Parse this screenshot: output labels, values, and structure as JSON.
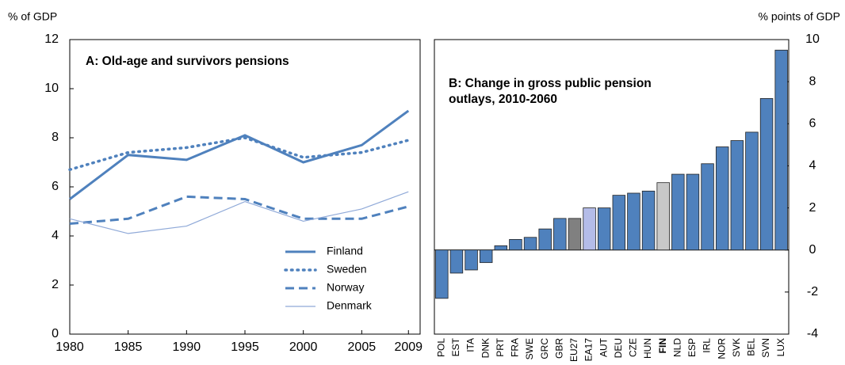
{
  "chart_data": [
    {
      "type": "line",
      "title": "A: Old-age and survivors pensions",
      "y_label": "% of GDP",
      "x": [
        1980,
        1985,
        1990,
        1995,
        2000,
        2005,
        2009
      ],
      "xlim": [
        1980,
        2010
      ],
      "xticks": [
        1980,
        1985,
        1990,
        1995,
        2000,
        2005,
        2009
      ],
      "ylim": [
        0,
        12
      ],
      "yticks": [
        0,
        2,
        4,
        6,
        8,
        10,
        12
      ],
      "series": [
        {
          "name": "Finland",
          "color": "#4f81bd",
          "style": "solid",
          "width": 3,
          "values": [
            5.5,
            7.3,
            7.1,
            8.1,
            7.0,
            7.7,
            9.1
          ]
        },
        {
          "name": "Sweden",
          "color": "#4f81bd",
          "style": "dotted",
          "width": 3.5,
          "values": [
            6.7,
            7.4,
            7.6,
            8.0,
            7.2,
            7.4,
            7.9
          ]
        },
        {
          "name": "Norway",
          "color": "#4f81bd",
          "style": "dashed",
          "width": 3,
          "values": [
            4.5,
            4.7,
            5.6,
            5.5,
            4.7,
            4.7,
            5.2
          ]
        },
        {
          "name": "Denmark",
          "color": "#8fa9d8",
          "style": "solid",
          "width": 1.2,
          "values": [
            4.7,
            4.1,
            4.4,
            5.4,
            4.6,
            5.1,
            5.8
          ]
        }
      ],
      "legend": "lower right"
    },
    {
      "type": "bar",
      "title": "B: Change in gross public pension outlays, 2010-2060",
      "y_label": "%  points of GDP",
      "categories": [
        "POL",
        "EST",
        "ITA",
        "DNK",
        "PRT",
        "FRA",
        "SWE",
        "GRC",
        "GBR",
        "EU27",
        "EA17",
        "AUT",
        "DEU",
        "CZE",
        "HUN",
        "FIN",
        "NLD",
        "ESP",
        "IRL",
        "NOR",
        "SVK",
        "BEL",
        "SVN",
        "LUX"
      ],
      "values": [
        -2.3,
        -1.1,
        -0.95,
        -0.6,
        0.2,
        0.5,
        0.6,
        1.0,
        1.5,
        1.5,
        2.0,
        2.0,
        2.6,
        2.7,
        2.8,
        3.2,
        3.6,
        3.6,
        4.1,
        4.9,
        5.2,
        5.6,
        7.2,
        9.5
      ],
      "colors": [
        "#4f81bd",
        "#4f81bd",
        "#4f81bd",
        "#4f81bd",
        "#4f81bd",
        "#4f81bd",
        "#4f81bd",
        "#4f81bd",
        "#4f81bd",
        "#808080",
        "#b4bce8",
        "#4f81bd",
        "#4f81bd",
        "#4f81bd",
        "#4f81bd",
        "#c8c8c8",
        "#4f81bd",
        "#4f81bd",
        "#4f81bd",
        "#4f81bd",
        "#4f81bd",
        "#4f81bd",
        "#4f81bd",
        "#4f81bd"
      ],
      "bold_category_index": 15,
      "ylim": [
        -4,
        10
      ],
      "yticks": [
        -4,
        -2,
        0,
        2,
        4,
        6,
        8,
        10
      ],
      "axis": "right"
    }
  ]
}
